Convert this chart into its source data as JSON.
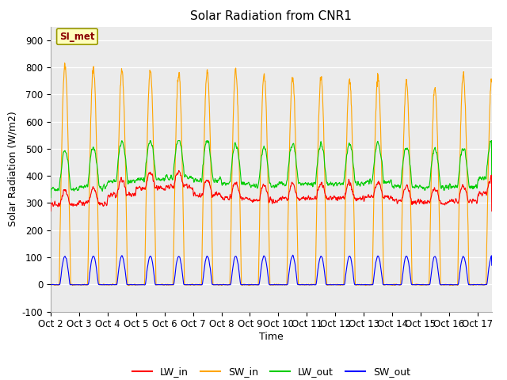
{
  "title": "Solar Radiation from CNR1",
  "ylabel": "Solar Radiation (W/m2)",
  "xlabel": "Time",
  "ylim": [
    -100,
    950
  ],
  "yticks": [
    -100,
    0,
    100,
    200,
    300,
    400,
    500,
    600,
    700,
    800,
    900
  ],
  "xtick_labels": [
    "Oct 2",
    "Oct 3",
    "Oct 4",
    "Oct 5",
    "Oct 6",
    "Oct 7",
    "Oct 8",
    "Oct 9",
    "Oct 10",
    "Oct 11",
    "Oct 12",
    "Oct 13",
    "Oct 14",
    "Oct 15",
    "Oct 16",
    "Oct 17"
  ],
  "colors": {
    "LW_in": "#ff0000",
    "SW_in": "#ffa500",
    "LW_out": "#00cc00",
    "SW_out": "#0000ff"
  },
  "annotation_text": "SI_met",
  "fig_bg_color": "#ffffff",
  "plot_bg_color": "#ebebeb",
  "grid_color": "#ffffff",
  "title_fontsize": 11,
  "axis_fontsize": 9,
  "tick_fontsize": 8.5
}
